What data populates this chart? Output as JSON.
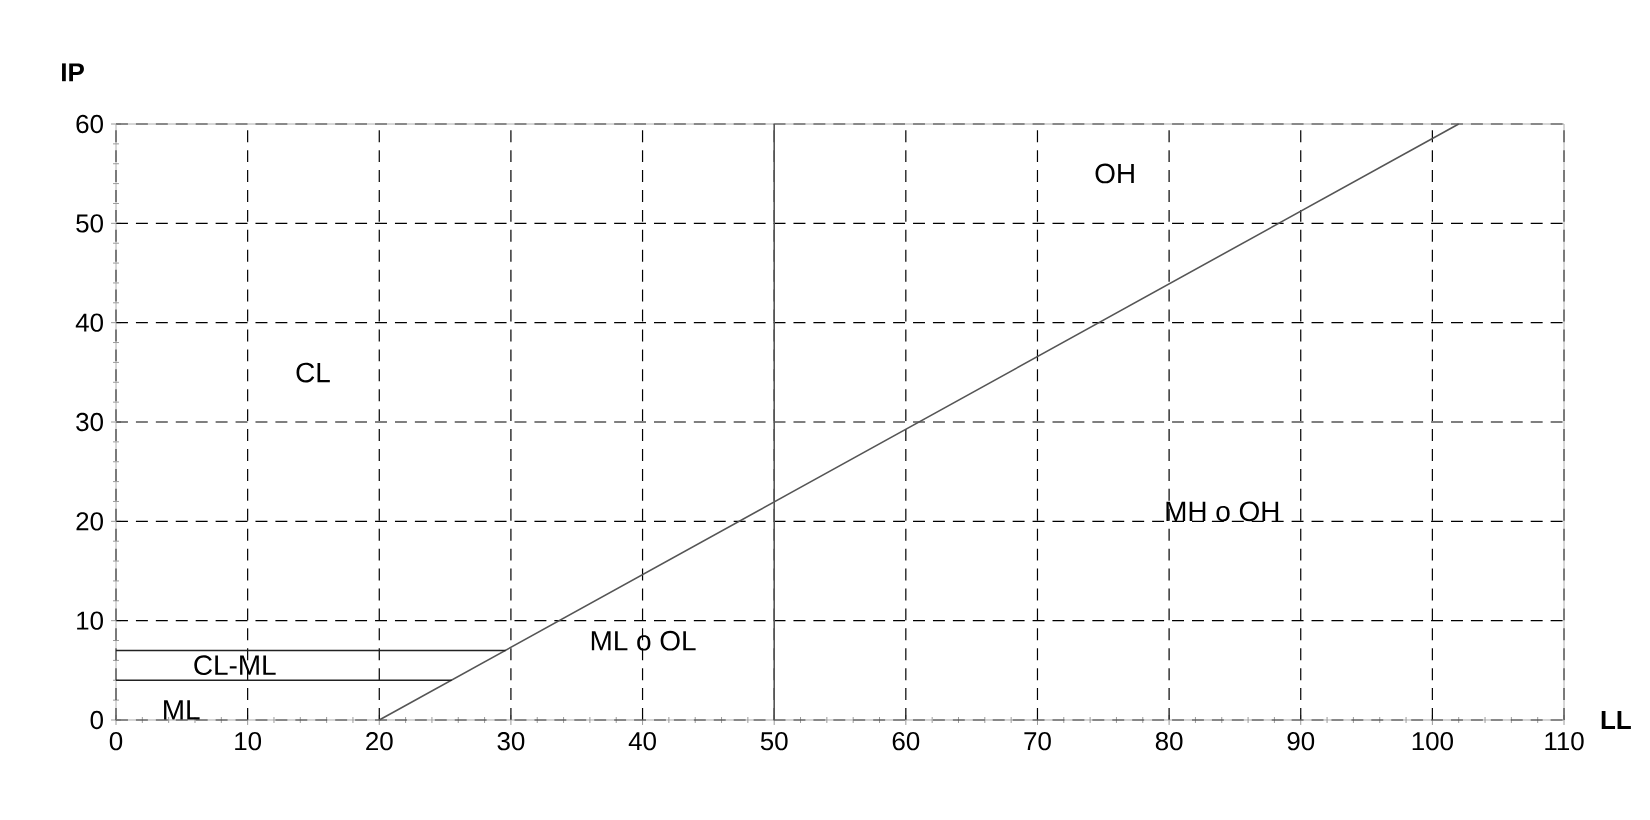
{
  "chart_data": {
    "type": "line",
    "xlabel": "LL",
    "ylabel": "IP",
    "xlim": [
      0,
      110
    ],
    "ylim": [
      0,
      60
    ],
    "xticks": [
      0,
      10,
      20,
      30,
      40,
      50,
      60,
      70,
      80,
      90,
      100,
      110
    ],
    "yticks": [
      0,
      10,
      20,
      30,
      40,
      50,
      60
    ],
    "grid": true,
    "marker": "none",
    "line_style": "solid",
    "series": [
      {
        "color": "#555555",
        "x": [
          20,
          102
        ],
        "values": [
          0,
          60
        ]
      },
      {
        "color": "#222222",
        "x": [
          0,
          25.5
        ],
        "values": [
          4,
          4
        ]
      },
      {
        "color": "#222222",
        "x": [
          0,
          29.6
        ],
        "values": [
          7,
          7
        ]
      }
    ],
    "ref_lines": [
      {
        "axis": "x",
        "value": 50,
        "color": "#555555",
        "line_style": "solid"
      }
    ],
    "annotations": [
      "CL",
      "OH",
      "MH o OH",
      "ML o OL",
      "CL-ML",
      "ML"
    ]
  }
}
